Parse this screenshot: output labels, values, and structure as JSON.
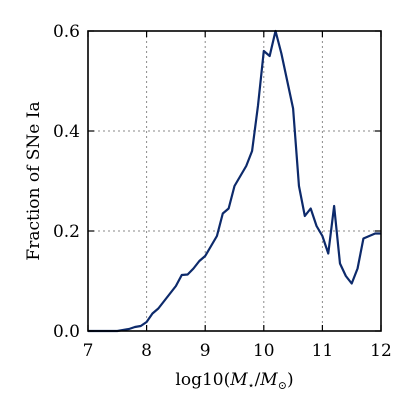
{
  "chart_data": {
    "type": "line",
    "title": "",
    "xlabel_parts": [
      "log10(",
      "M",
      "⋆",
      "/",
      "M",
      "⊙",
      ")"
    ],
    "ylabel": "Fraction of SNe Ia",
    "xlim": [
      7,
      12
    ],
    "ylim": [
      0,
      0.6
    ],
    "xticks": [
      "7",
      "8",
      "9",
      "10",
      "11",
      "12"
    ],
    "yticks": [
      "0.0",
      "0.2",
      "0.4",
      "0.6"
    ],
    "xtick_values": [
      7,
      8,
      9,
      10,
      11,
      12
    ],
    "ytick_values": [
      0,
      0.2,
      0.4,
      0.6
    ],
    "grid": true,
    "color": "#0d2a6b",
    "x": [
      7.0,
      7.1,
      7.2,
      7.3,
      7.4,
      7.5,
      7.6,
      7.7,
      7.8,
      7.9,
      8.0,
      8.1,
      8.2,
      8.3,
      8.4,
      8.5,
      8.6,
      8.7,
      8.8,
      8.9,
      9.0,
      9.1,
      9.2,
      9.3,
      9.4,
      9.5,
      9.6,
      9.7,
      9.8,
      9.9,
      10.0,
      10.1,
      10.2,
      10.3,
      10.4,
      10.5,
      10.6,
      10.7,
      10.8,
      10.9,
      11.0,
      11.1,
      11.2,
      11.3,
      11.4,
      11.5,
      11.6,
      11.7,
      11.8,
      11.9,
      12.0
    ],
    "y": [
      0.0,
      0.0,
      0.0,
      0.0,
      0.0,
      0.0,
      0.002,
      0.004,
      0.008,
      0.01,
      0.018,
      0.035,
      0.045,
      0.06,
      0.075,
      0.09,
      0.112,
      0.113,
      0.125,
      0.14,
      0.15,
      0.17,
      0.19,
      0.235,
      0.245,
      0.29,
      0.31,
      0.33,
      0.36,
      0.45,
      0.56,
      0.55,
      0.6,
      0.555,
      0.5,
      0.445,
      0.29,
      0.23,
      0.245,
      0.21,
      0.19,
      0.155,
      0.25,
      0.135,
      0.11,
      0.095,
      0.125,
      0.185,
      0.19,
      0.195,
      0.195
    ]
  }
}
